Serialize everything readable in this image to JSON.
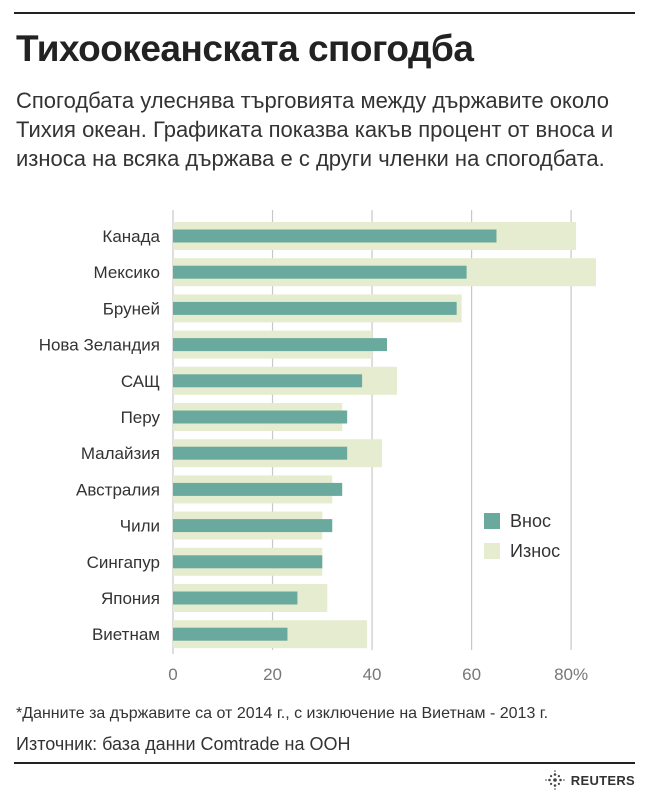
{
  "header": {
    "title": "Тихоокеанската спогодба",
    "subtitle": "Спогодбата улеснява търговията между държавите около Тихия океан. Графиката показва какъв процент от вноса и износа на всяка държава е с други членки на спогодбата."
  },
  "footer": {
    "footnote": "*Данните за държавите са от 2014 г., с изключение на Виетнам - 2013 г.",
    "source": "Източник: база данни Comtrade на ООН",
    "brand": "REUTERS"
  },
  "chart_data": {
    "type": "bar",
    "orientation": "horizontal",
    "categories": [
      "Канада",
      "Мексико",
      "Бруней",
      "Нова Зеландия",
      "САЩ",
      "Перу",
      "Малайзия",
      "Австралия",
      "Чили",
      "Сингапур",
      "Япония",
      "Виетнам"
    ],
    "series": [
      {
        "name": "Внос",
        "values": [
          65,
          59,
          57,
          43,
          38,
          35,
          35,
          34,
          32,
          30,
          25,
          23
        ],
        "color": "#6aaa9e"
      },
      {
        "name": "Износ",
        "values": [
          81,
          85,
          58,
          40,
          45,
          34,
          42,
          32,
          30,
          30,
          31,
          39
        ],
        "color": "#e6eccf"
      }
    ],
    "xlim": [
      0,
      85
    ],
    "xticks": [
      0,
      20,
      40,
      60,
      80
    ],
    "xtick_labels": [
      "0",
      "20",
      "40",
      "60",
      "80%"
    ],
    "grid": true,
    "legend_placement": "right"
  }
}
